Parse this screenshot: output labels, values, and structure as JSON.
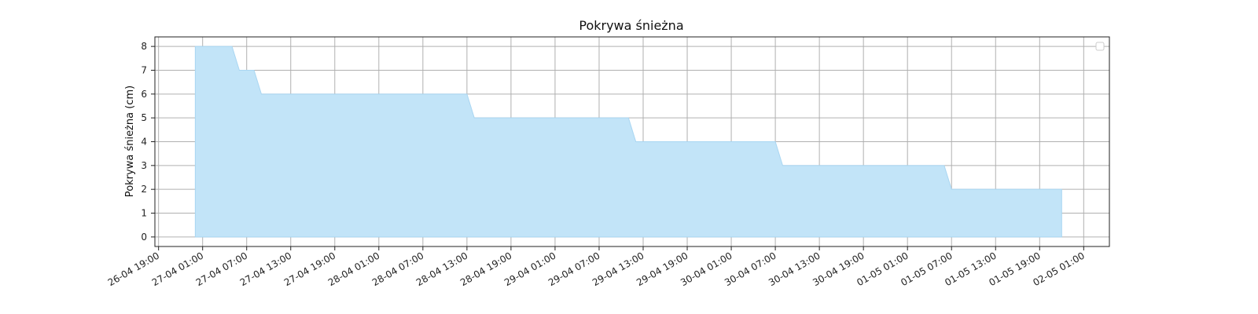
{
  "chart_data": {
    "type": "area",
    "title": "Pokrywa śnieżna",
    "xlabel": "",
    "ylabel": "Pokrywa śnieżna (cm)",
    "fill_color": "#c2e4f8",
    "line_color": "#a9d6f2",
    "grid": true,
    "legend": {
      "placement": "top-right",
      "entries": []
    },
    "x_tick_labels": [
      "26-04 19:00",
      "27-04 01:00",
      "27-04 07:00",
      "27-04 13:00",
      "27-04 19:00",
      "28-04 01:00",
      "28-04 07:00",
      "28-04 13:00",
      "28-04 19:00",
      "29-04 01:00",
      "29-04 07:00",
      "29-04 13:00",
      "29-04 19:00",
      "30-04 01:00",
      "30-04 07:00",
      "30-04 13:00",
      "30-04 19:00",
      "01-05 01:00",
      "01-05 07:00",
      "01-05 13:00",
      "01-05 19:00",
      "02-05 01:00"
    ],
    "y_ticks": [
      0,
      1,
      2,
      3,
      4,
      5,
      6,
      7,
      8
    ],
    "ylim": [
      -0.4,
      8.4
    ],
    "xlim": [
      "26-04 18:30",
      "02-05 04:30"
    ],
    "series": [
      {
        "values": [
          {
            "x": "27-04 00:00",
            "y": 8
          },
          {
            "x": "27-04 05:00",
            "y": 8
          },
          {
            "x": "27-04 06:00",
            "y": 7
          },
          {
            "x": "27-04 08:00",
            "y": 7
          },
          {
            "x": "27-04 09:00",
            "y": 6
          },
          {
            "x": "28-04 13:00",
            "y": 6
          },
          {
            "x": "28-04 14:00",
            "y": 5
          },
          {
            "x": "29-04 11:00",
            "y": 5
          },
          {
            "x": "29-04 12:00",
            "y": 4
          },
          {
            "x": "30-04 07:00",
            "y": 4
          },
          {
            "x": "30-04 08:00",
            "y": 3
          },
          {
            "x": "01-05 06:00",
            "y": 3
          },
          {
            "x": "01-05 07:00",
            "y": 2
          },
          {
            "x": "01-05 22:00",
            "y": 2
          }
        ]
      }
    ]
  }
}
